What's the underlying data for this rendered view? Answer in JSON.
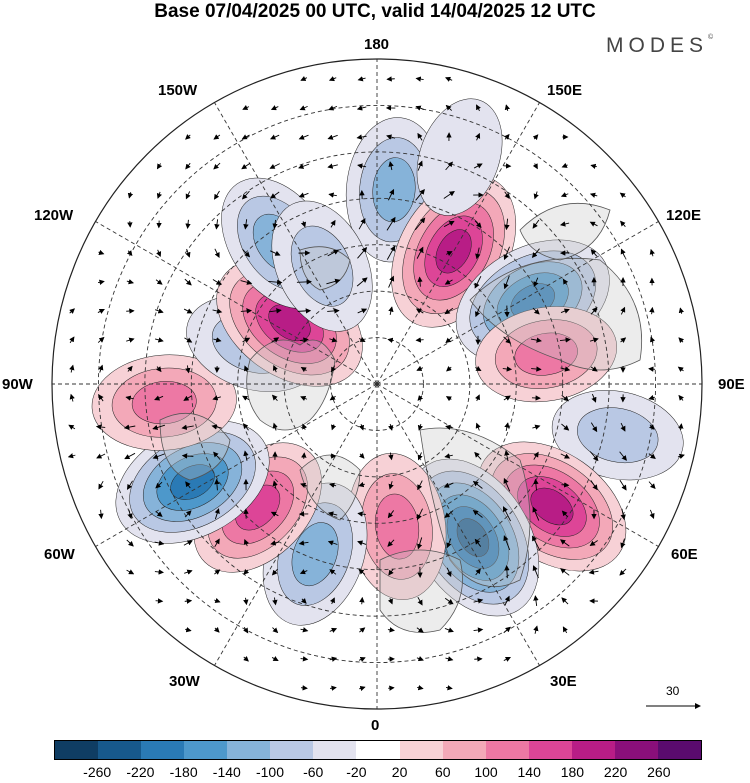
{
  "title": "Base 07/04/2025 00 UTC, valid 14/04/2025 12 UTC",
  "brand": "MODES",
  "brand_mark": "©",
  "longitude_labels": {
    "deg180": "180",
    "deg150e": "150E",
    "deg120e": "120E",
    "deg90e": "90E",
    "deg60e": "60E",
    "deg30e": "30E",
    "deg0": "0",
    "deg30w": "30W",
    "deg60w": "60W",
    "deg90w": "90W",
    "deg120w": "120W",
    "deg150w": "150W"
  },
  "vector_reference": "30",
  "colorbar": {
    "ticks": [
      "-260",
      "-220",
      "-180",
      "-140",
      "-100",
      "-60",
      "-20",
      "20",
      "60",
      "100",
      "140",
      "180",
      "220",
      "260"
    ],
    "colors": [
      "#0f3d63",
      "#17598c",
      "#2a7ab5",
      "#4d98cb",
      "#86b3d9",
      "#b9c8e4",
      "#e3e3ef",
      "#ffffff",
      "#f7d1d6",
      "#f3a8b8",
      "#ed78a4",
      "#dd4597",
      "#b81d86",
      "#8a0f7a",
      "#5a0b6e"
    ]
  },
  "anomaly_centers": [
    {
      "lon": 175,
      "colat": 42,
      "value": -120
    },
    {
      "lon": 150,
      "colat": 33,
      "value": 200
    },
    {
      "lon": 118,
      "colat": 38,
      "value": -200
    },
    {
      "lon": 100,
      "colat": 37,
      "value": 110
    },
    {
      "lon": 78,
      "colat": 53,
      "value": -70
    },
    {
      "lon": 55,
      "colat": 46,
      "value": 200
    },
    {
      "lon": 32,
      "colat": 39,
      "value": -230
    },
    {
      "lon": 8,
      "colat": 31,
      "value": 130
    },
    {
      "lon": -20,
      "colat": 39,
      "value": -130
    },
    {
      "lon": -44,
      "colat": 37,
      "value": 150
    },
    {
      "lon": -62,
      "colat": 45,
      "value": -200
    },
    {
      "lon": -85,
      "colat": 46,
      "value": 120
    },
    {
      "lon": -108,
      "colat": 28,
      "value": -90
    },
    {
      "lon": -125,
      "colat": 23,
      "value": 190
    },
    {
      "lon": -145,
      "colat": 37,
      "value": -120
    },
    {
      "lon": -155,
      "colat": 28,
      "value": -90
    },
    {
      "lon": 160,
      "colat": 52,
      "value": -20
    }
  ]
}
